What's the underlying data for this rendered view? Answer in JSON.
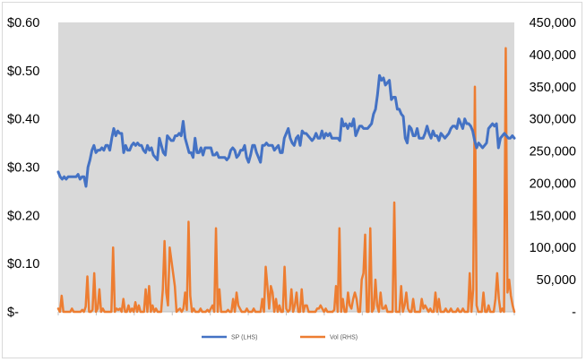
{
  "chart_data": {
    "type": "line",
    "title": "",
    "xlabel": "",
    "plot_background": "#d9d9d9",
    "grid": false,
    "legend_position": "bottom",
    "y_left": {
      "ylim": [
        0,
        0.6
      ],
      "ticks": [
        0,
        0.1,
        0.2,
        0.3,
        0.4,
        0.5,
        0.6
      ],
      "tick_labels": [
        "$-",
        "$0.10",
        "$0.20",
        "$0.30",
        "$0.40",
        "$0.50",
        "$0.60"
      ]
    },
    "y_right": {
      "ylim": [
        0,
        450000
      ],
      "ticks": [
        0,
        50000,
        100000,
        150000,
        200000,
        250000,
        300000,
        350000,
        400000,
        450000
      ],
      "tick_labels": [
        "-",
        "50,000",
        "100,000",
        "150,000",
        "200,000",
        "250,000",
        "300,000",
        "350,000",
        "400,000",
        "450,000"
      ]
    },
    "series": [
      {
        "name": "SP (LHS)",
        "axis": "left",
        "color": "#4472c4",
        "values": [
          0.29,
          0.28,
          0.275,
          0.28,
          0.275,
          0.28,
          0.28,
          0.28,
          0.28,
          0.28,
          0.285,
          0.275,
          0.28,
          0.28,
          0.26,
          0.3,
          0.315,
          0.335,
          0.345,
          0.33,
          0.335,
          0.335,
          0.34,
          0.335,
          0.345,
          0.345,
          0.335,
          0.36,
          0.38,
          0.365,
          0.375,
          0.37,
          0.37,
          0.33,
          0.345,
          0.335,
          0.335,
          0.345,
          0.35,
          0.345,
          0.35,
          0.345,
          0.345,
          0.335,
          0.33,
          0.345,
          0.335,
          0.34,
          0.325,
          0.32,
          0.315,
          0.36,
          0.345,
          0.33,
          0.325,
          0.365,
          0.36,
          0.355,
          0.355,
          0.365,
          0.365,
          0.37,
          0.365,
          0.395,
          0.36,
          0.345,
          0.33,
          0.33,
          0.32,
          0.36,
          0.33,
          0.33,
          0.34,
          0.325,
          0.34,
          0.34,
          0.34,
          0.34,
          0.325,
          0.325,
          0.33,
          0.32,
          0.32,
          0.32,
          0.32,
          0.315,
          0.32,
          0.335,
          0.34,
          0.335,
          0.32,
          0.325,
          0.335,
          0.335,
          0.345,
          0.32,
          0.31,
          0.325,
          0.345,
          0.345,
          0.33,
          0.32,
          0.31,
          0.345,
          0.345,
          0.35,
          0.345,
          0.345,
          0.345,
          0.335,
          0.34,
          0.345,
          0.33,
          0.33,
          0.36,
          0.37,
          0.38,
          0.36,
          0.35,
          0.345,
          0.36,
          0.365,
          0.345,
          0.375,
          0.37,
          0.37,
          0.365,
          0.36,
          0.355,
          0.36,
          0.37,
          0.36,
          0.36,
          0.375,
          0.36,
          0.37,
          0.365,
          0.37,
          0.36,
          0.36,
          0.36,
          0.36,
          0.355,
          0.4,
          0.385,
          0.39,
          0.38,
          0.39,
          0.385,
          0.4,
          0.365,
          0.375,
          0.385,
          0.385,
          0.38,
          0.38,
          0.38,
          0.385,
          0.39,
          0.41,
          0.42,
          0.45,
          0.49,
          0.48,
          0.485,
          0.47,
          0.475,
          0.48,
          0.44,
          0.445,
          0.445,
          0.42,
          0.42,
          0.41,
          0.405,
          0.36,
          0.35,
          0.385,
          0.38,
          0.365,
          0.365,
          0.38,
          0.36,
          0.36,
          0.36,
          0.37,
          0.385,
          0.37,
          0.36,
          0.375,
          0.365,
          0.365,
          0.355,
          0.37,
          0.365,
          0.36,
          0.365,
          0.37,
          0.38,
          0.385,
          0.385,
          0.38,
          0.4,
          0.39,
          0.38,
          0.4,
          0.39,
          0.39,
          0.385,
          0.375,
          0.355,
          0.34,
          0.35,
          0.345,
          0.34,
          0.345,
          0.35,
          0.38,
          0.385,
          0.39,
          0.385,
          0.39,
          0.34,
          0.36,
          0.365,
          0.37,
          0.365,
          0.36,
          0.36,
          0.365,
          0.36
        ]
      },
      {
        "name": "Vol (RHS)",
        "axis": "right",
        "color": "#ed7d31",
        "values": [
          5000,
          0,
          25000,
          0,
          0,
          0,
          0,
          0,
          5000,
          0,
          0,
          0,
          0,
          0,
          3000,
          0,
          8000,
          55000,
          0,
          0,
          3000,
          60000,
          0,
          5000,
          35000,
          0,
          5000,
          0,
          0,
          0,
          0,
          0,
          100000,
          0,
          5000,
          3000,
          5000,
          0,
          20000,
          0,
          0,
          10000,
          0,
          5000,
          0,
          15000,
          0,
          10000,
          0,
          0,
          0,
          35000,
          0,
          40000,
          0,
          10000,
          0,
          5000,
          0,
          0,
          0,
          35000,
          110000,
          30000,
          10000,
          100000,
          80000,
          60000,
          40000,
          0,
          3000,
          5000,
          0,
          5000,
          30000,
          3000,
          140000,
          25000,
          0,
          5000,
          0,
          0,
          0,
          5000,
          0,
          0,
          0,
          3000,
          0,
          5000,
          10000,
          0,
          130000,
          0,
          35000,
          0,
          0,
          0,
          0,
          3000,
          0,
          0,
          20000,
          0,
          30000,
          10000,
          5000,
          0,
          0,
          0,
          5000,
          0,
          0,
          0,
          5000,
          0,
          0,
          0,
          0,
          20000,
          0,
          70000,
          40000,
          5000,
          40000,
          30000,
          0,
          20000,
          0,
          10000,
          0,
          0,
          70000,
          5000,
          0,
          3000,
          35000,
          0,
          10000,
          30000,
          0,
          0,
          35000,
          0,
          10000,
          10000,
          0,
          0,
          0,
          0,
          0,
          5000,
          5000,
          10000,
          5000,
          0,
          5000,
          0,
          0,
          0,
          0,
          3000,
          40000,
          0,
          130000,
          0,
          20000,
          0,
          0,
          30000,
          10000,
          5000,
          20000,
          30000,
          20000,
          0,
          0,
          50000,
          60000,
          120000,
          0,
          0,
          130000,
          0,
          5000,
          50000,
          10000,
          0,
          30000,
          5000,
          5000,
          10000,
          0,
          0,
          0,
          0,
          170000,
          0,
          0,
          0,
          40000,
          0,
          10000,
          30000,
          5000,
          0,
          0,
          20000,
          0,
          0,
          0,
          0,
          20000,
          5000,
          10000,
          5000,
          0,
          5000,
          0,
          0,
          30000,
          0,
          20000,
          0,
          0,
          0,
          5000,
          0,
          0,
          5000,
          0,
          0,
          0,
          5000,
          0,
          0,
          5000,
          0,
          0,
          0,
          60000,
          0,
          35000,
          350000,
          10000,
          0,
          0,
          0,
          30000,
          0,
          0,
          10000,
          0,
          0,
          0,
          20000,
          60000,
          20000,
          0,
          5000,
          0,
          410000,
          30000,
          50000,
          25000,
          10000,
          0
        ]
      }
    ]
  }
}
